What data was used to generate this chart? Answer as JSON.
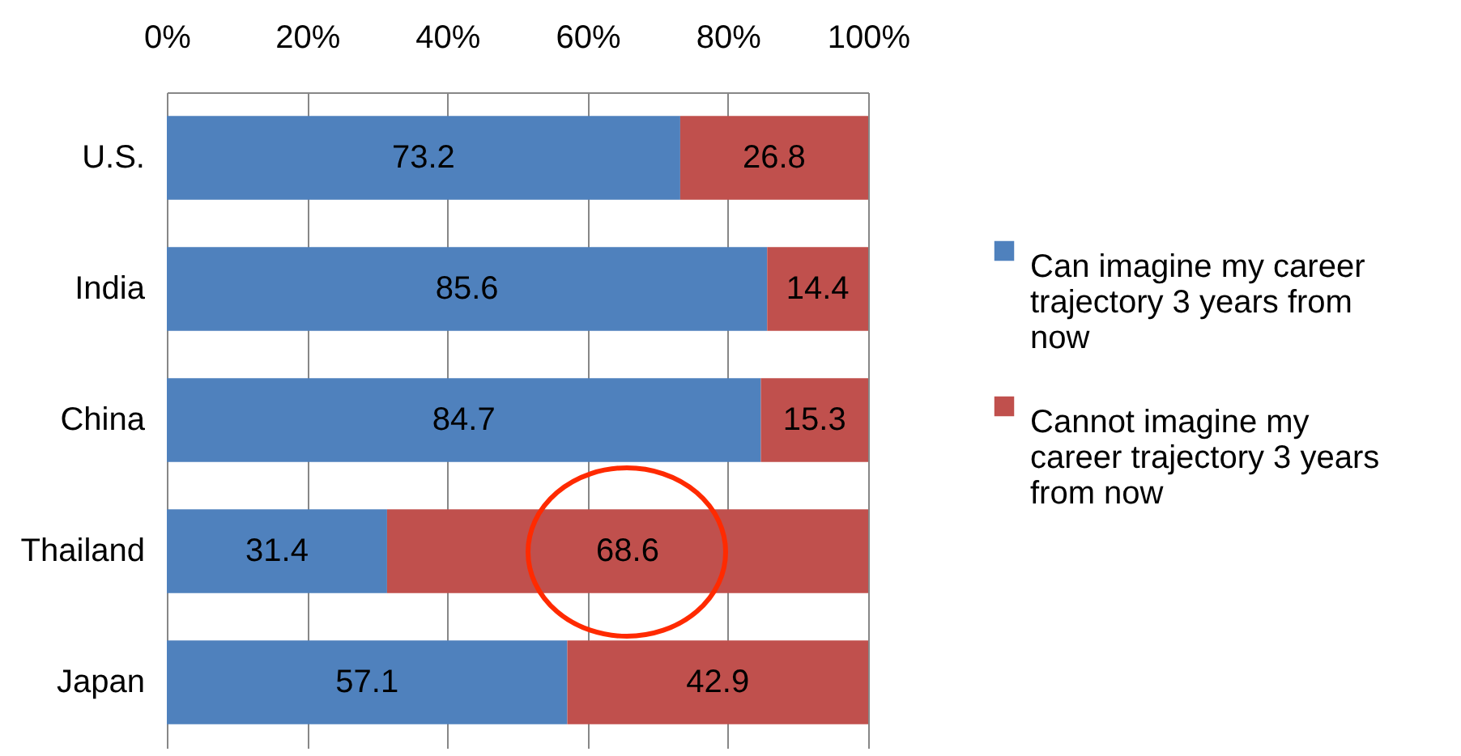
{
  "chart_data": {
    "type": "bar",
    "orientation": "horizontal",
    "stacked": true,
    "categories": [
      "U.S.",
      "India",
      "China",
      "Thailand",
      "Japan"
    ],
    "series": [
      {
        "name": "Can imagine my career trajectory 3 years from now",
        "color": "#4f81bd",
        "values": [
          73.2,
          85.6,
          84.7,
          31.4,
          57.1
        ]
      },
      {
        "name": "Cannot imagine my career trajectory 3 years from now",
        "color": "#c0504d",
        "values": [
          26.8,
          14.4,
          15.3,
          68.6,
          42.9
        ]
      }
    ],
    "xlim": [
      0,
      100
    ],
    "xticks": [
      {
        "value": 0,
        "label": "0%"
      },
      {
        "value": 20,
        "label": "20%"
      },
      {
        "value": 40,
        "label": "40%"
      },
      {
        "value": 60,
        "label": "60%"
      },
      {
        "value": 80,
        "label": "80%"
      },
      {
        "value": 100,
        "label": "100%"
      }
    ],
    "grid": "x",
    "legend": "right",
    "data_labels": true
  }
}
